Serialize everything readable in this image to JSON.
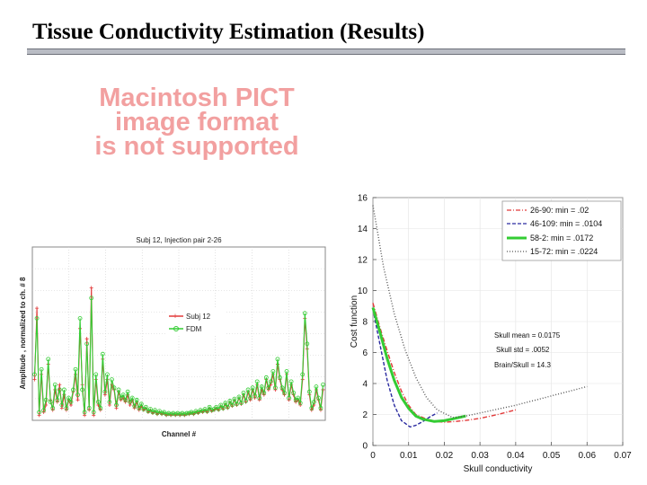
{
  "slide": {
    "title": "Tissue Conductivity Estimation (Results)",
    "pict_message": [
      "Macintosh PICT",
      "image format",
      "is not supported"
    ]
  },
  "chart_data": [
    {
      "type": "line",
      "title": "Subj 12, Injection pair 2-26",
      "xlabel": "Channel #",
      "ylabel": "Amplitude , normalized to ch. # 8",
      "xlim": [
        0,
        129
      ],
      "ylim": [
        0,
        1.7
      ],
      "legend": {
        "placement": "center"
      },
      "series": [
        {
          "name": "Subj  12",
          "color": "#e23a3a",
          "marker": "plus",
          "x": [
            1,
            2,
            3,
            4,
            5,
            6,
            7,
            8,
            9,
            10,
            11,
            12,
            13,
            14,
            15,
            16,
            17,
            18,
            19,
            20,
            21,
            22,
            23,
            24,
            25,
            26,
            27,
            28,
            29,
            30,
            31,
            32,
            33,
            34,
            35,
            36,
            37,
            38,
            39,
            40,
            41,
            42,
            43,
            44,
            45,
            46,
            47,
            48,
            49,
            50,
            51,
            52,
            53,
            54,
            55,
            56,
            57,
            58,
            59,
            60,
            61,
            62,
            63,
            64,
            65,
            66,
            67,
            68,
            69,
            70,
            71,
            72,
            73,
            74,
            75,
            76,
            77,
            78,
            79,
            80,
            81,
            82,
            83,
            84,
            85,
            86,
            87,
            88,
            89,
            90,
            91,
            92,
            93,
            94,
            95,
            96,
            97,
            98,
            99,
            100,
            101,
            102,
            103,
            104,
            105,
            106,
            107,
            108,
            109,
            110,
            111,
            112,
            113,
            114,
            115,
            116,
            117,
            118,
            119,
            120,
            121,
            122,
            123,
            124,
            125,
            126,
            127,
            128
          ],
          "values": [
            0.4,
            1.1,
            0.05,
            0.45,
            0.08,
            0.15,
            0.55,
            0.2,
            0.1,
            0.3,
            0.18,
            0.35,
            0.12,
            0.25,
            0.1,
            0.2,
            0.15,
            0.28,
            0.45,
            0.2,
            0.9,
            0.35,
            0.05,
            0.8,
            0.1,
            1.3,
            0.05,
            0.4,
            0.15,
            0.1,
            0.6,
            0.25,
            0.4,
            0.15,
            0.35,
            0.3,
            0.12,
            0.28,
            0.2,
            0.22,
            0.18,
            0.25,
            0.15,
            0.2,
            0.12,
            0.18,
            0.1,
            0.14,
            0.1,
            0.12,
            0.08,
            0.1,
            0.07,
            0.09,
            0.06,
            0.08,
            0.06,
            0.07,
            0.05,
            0.06,
            0.05,
            0.06,
            0.05,
            0.06,
            0.05,
            0.06,
            0.05,
            0.06,
            0.06,
            0.07,
            0.06,
            0.08,
            0.07,
            0.09,
            0.08,
            0.1,
            0.08,
            0.12,
            0.09,
            0.1,
            0.12,
            0.1,
            0.14,
            0.11,
            0.16,
            0.12,
            0.18,
            0.14,
            0.2,
            0.15,
            0.22,
            0.16,
            0.25,
            0.18,
            0.28,
            0.2,
            0.3,
            0.22,
            0.35,
            0.2,
            0.3,
            0.25,
            0.4,
            0.3,
            0.35,
            0.45,
            0.3,
            0.55,
            0.4,
            0.3,
            0.25,
            0.45,
            0.2,
            0.35,
            0.25,
            0.18,
            0.2,
            0.15,
            0.4,
            1.0,
            0.7,
            0.25,
            0.1,
            0.15,
            0.3,
            0.2,
            0.1,
            0.3
          ]
        },
        {
          "name": "FDM",
          "color": "#33cc33",
          "marker": "circle",
          "x": [
            1,
            2,
            3,
            4,
            5,
            6,
            7,
            8,
            9,
            10,
            11,
            12,
            13,
            14,
            15,
            16,
            17,
            18,
            19,
            20,
            21,
            22,
            23,
            24,
            25,
            26,
            27,
            28,
            29,
            30,
            31,
            32,
            33,
            34,
            35,
            36,
            37,
            38,
            39,
            40,
            41,
            42,
            43,
            44,
            45,
            46,
            47,
            48,
            49,
            50,
            51,
            52,
            53,
            54,
            55,
            56,
            57,
            58,
            59,
            60,
            61,
            62,
            63,
            64,
            65,
            66,
            67,
            68,
            69,
            70,
            71,
            72,
            73,
            74,
            75,
            76,
            77,
            78,
            79,
            80,
            81,
            82,
            83,
            84,
            85,
            86,
            87,
            88,
            89,
            90,
            91,
            92,
            93,
            94,
            95,
            96,
            97,
            98,
            99,
            100,
            101,
            102,
            103,
            104,
            105,
            106,
            107,
            108,
            109,
            110,
            111,
            112,
            113,
            114,
            115,
            116,
            117,
            118,
            119,
            120,
            121,
            122,
            123,
            124,
            125,
            126,
            127,
            128
          ],
          "values": [
            0.45,
            1.0,
            0.08,
            0.5,
            0.1,
            0.2,
            0.6,
            0.18,
            0.12,
            0.35,
            0.2,
            0.3,
            0.15,
            0.3,
            0.12,
            0.22,
            0.18,
            0.3,
            0.5,
            0.25,
            1.0,
            0.3,
            0.08,
            0.75,
            0.12,
            1.2,
            0.08,
            0.45,
            0.18,
            0.12,
            0.65,
            0.28,
            0.45,
            0.18,
            0.4,
            0.32,
            0.15,
            0.3,
            0.22,
            0.25,
            0.2,
            0.28,
            0.18,
            0.22,
            0.14,
            0.2,
            0.12,
            0.16,
            0.11,
            0.13,
            0.09,
            0.11,
            0.08,
            0.1,
            0.07,
            0.09,
            0.07,
            0.08,
            0.06,
            0.07,
            0.06,
            0.07,
            0.06,
            0.07,
            0.06,
            0.07,
            0.06,
            0.07,
            0.07,
            0.08,
            0.07,
            0.09,
            0.08,
            0.1,
            0.09,
            0.11,
            0.09,
            0.13,
            0.1,
            0.11,
            0.13,
            0.11,
            0.15,
            0.12,
            0.17,
            0.13,
            0.19,
            0.15,
            0.21,
            0.16,
            0.23,
            0.17,
            0.27,
            0.19,
            0.3,
            0.22,
            0.32,
            0.24,
            0.38,
            0.22,
            0.33,
            0.27,
            0.42,
            0.32,
            0.38,
            0.48,
            0.32,
            0.6,
            0.42,
            0.32,
            0.27,
            0.48,
            0.22,
            0.38,
            0.27,
            0.2,
            0.22,
            0.17,
            0.45,
            1.05,
            0.75,
            0.28,
            0.12,
            0.18,
            0.33,
            0.22,
            0.12,
            0.35
          ]
        }
      ]
    },
    {
      "type": "line",
      "title": "",
      "xlabel": "Skull conductivity",
      "ylabel": "Cost function",
      "xlim": [
        0,
        0.07
      ],
      "ylim": [
        0,
        16
      ],
      "xticks": [
        "0",
        "0.01",
        "0.02",
        "0.03",
        "0.04",
        "0.05",
        "0.06",
        "0.07"
      ],
      "yticks": [
        "0",
        "2",
        "4",
        "6",
        "8",
        "10",
        "12",
        "14",
        "16"
      ],
      "legend": {
        "placement": "top-right"
      },
      "annotations": [
        "Skull mean = 0.0175",
        "Skull std = .0052",
        "Brain/Skull =  14.3"
      ],
      "series": [
        {
          "name": "26-90:  min = .02",
          "color": "#e23a3a",
          "dash": "dashdot",
          "x": [
            0,
            0.002,
            0.004,
            0.006,
            0.008,
            0.01,
            0.012,
            0.015,
            0.018,
            0.02,
            0.023,
            0.026,
            0.03,
            0.035,
            0.04
          ],
          "values": [
            9.2,
            7.6,
            6.1,
            4.7,
            3.5,
            2.6,
            2.0,
            1.7,
            1.55,
            1.5,
            1.55,
            1.62,
            1.75,
            2.0,
            2.3
          ]
        },
        {
          "name": "46-109: min = .0104",
          "color": "#2a2aa0",
          "dash": "dashed",
          "x": [
            0,
            0.002,
            0.004,
            0.006,
            0.008,
            0.0104,
            0.012,
            0.014,
            0.016,
            0.018
          ],
          "values": [
            8.8,
            6.5,
            4.2,
            2.6,
            1.6,
            1.2,
            1.3,
            1.55,
            1.85,
            2.1
          ]
        },
        {
          "name": "58-2:    min = .0172",
          "color": "#33cc33",
          "dash": "solid",
          "x": [
            0,
            0.002,
            0.004,
            0.006,
            0.008,
            0.01,
            0.012,
            0.014,
            0.0172,
            0.02,
            0.023,
            0.026
          ],
          "values": [
            8.9,
            7.3,
            5.6,
            4.2,
            3.1,
            2.4,
            1.9,
            1.7,
            1.55,
            1.6,
            1.75,
            1.9
          ]
        },
        {
          "name": "15-72:  min = .0224",
          "color": "#555555",
          "dash": "dotted",
          "x": [
            0,
            0.003,
            0.006,
            0.009,
            0.012,
            0.015,
            0.018,
            0.0224,
            0.026,
            0.03,
            0.04,
            0.05,
            0.06
          ],
          "values": [
            15.5,
            11.5,
            8.5,
            6.2,
            4.4,
            3.1,
            2.3,
            1.8,
            1.9,
            2.1,
            2.6,
            3.2,
            3.8
          ]
        }
      ]
    }
  ]
}
